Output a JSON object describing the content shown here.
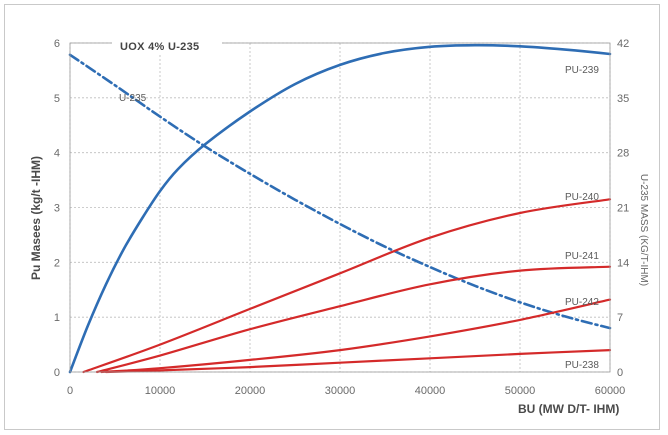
{
  "chart_data": {
    "type": "line",
    "title": "UOX 4% U-235",
    "xlabel": "BU (MW D/T- IHM)",
    "ylabel": "Pu Masees (kg/t -IHM)",
    "y2label": "U-235 MASS (KG/T-IHM)",
    "xlim": [
      0,
      60000
    ],
    "ylim": [
      0,
      6
    ],
    "y2lim": [
      0,
      42
    ],
    "x_ticks": [
      "0",
      "10000",
      "20000",
      "30000",
      "40000",
      "50000",
      "60000"
    ],
    "y_ticks": [
      "0",
      "1",
      "2",
      "3",
      "4",
      "5",
      "6"
    ],
    "y2_ticks": [
      "0",
      "7",
      "14",
      "21",
      "28",
      "35",
      "42"
    ],
    "grid": true,
    "colors": {
      "u235": "#2e6db4",
      "pu239": "#2e6db4",
      "red": "#d42a2a"
    },
    "series": [
      {
        "name": "PU-239",
        "axis": "left",
        "style": "solid",
        "x": [
          0,
          2000,
          4000,
          6000,
          8000,
          10000,
          12000,
          15000,
          20000,
          25000,
          30000,
          35000,
          40000,
          45000,
          50000,
          55000,
          60000
        ],
        "y": [
          0,
          0.85,
          1.6,
          2.25,
          2.8,
          3.3,
          3.7,
          4.15,
          4.75,
          5.25,
          5.6,
          5.82,
          5.93,
          5.96,
          5.94,
          5.88,
          5.8
        ]
      },
      {
        "name": "U-235",
        "axis": "right",
        "style": "dashdot",
        "x": [
          0,
          5000,
          10000,
          15000,
          20000,
          25000,
          30000,
          35000,
          40000,
          45000,
          50000,
          55000,
          60000
        ],
        "y": [
          40.5,
          36.6,
          32.6,
          28.8,
          25.3,
          22.0,
          18.9,
          16.0,
          13.4,
          11.0,
          8.9,
          7.1,
          5.6
        ]
      },
      {
        "name": "PU-240",
        "axis": "left",
        "style": "solid",
        "x": [
          1500,
          10000,
          20000,
          30000,
          40000,
          50000,
          60000
        ],
        "y": [
          0,
          0.5,
          1.15,
          1.8,
          2.45,
          2.9,
          3.15
        ]
      },
      {
        "name": "PU-241",
        "axis": "left",
        "style": "solid",
        "x": [
          3000,
          10000,
          20000,
          30000,
          40000,
          50000,
          60000
        ],
        "y": [
          0,
          0.3,
          0.78,
          1.2,
          1.6,
          1.85,
          1.92
        ]
      },
      {
        "name": "PU-242",
        "axis": "left",
        "style": "solid",
        "x": [
          3500,
          10000,
          20000,
          30000,
          40000,
          50000,
          60000
        ],
        "y": [
          0,
          0.07,
          0.22,
          0.4,
          0.65,
          0.95,
          1.32
        ]
      },
      {
        "name": "PU-238",
        "axis": "left",
        "style": "solid",
        "x": [
          4000,
          10000,
          20000,
          30000,
          40000,
          50000,
          60000
        ],
        "y": [
          0,
          0.03,
          0.09,
          0.17,
          0.25,
          0.33,
          0.4
        ]
      }
    ]
  }
}
